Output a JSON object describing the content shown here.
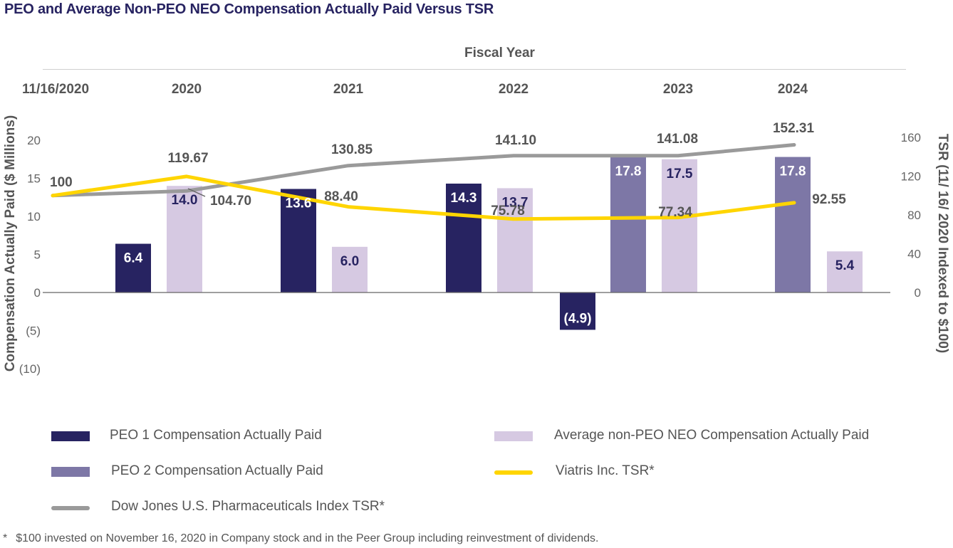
{
  "title": "PEO and Average Non-PEO NEO Compensation Actually Paid Versus TSR",
  "colors": {
    "peo1": "#272361",
    "peo2": "#7d77a6",
    "non_peo": "#d6c9e2",
    "viatris_tsr": "#ffd500",
    "dow_jones_tsr": "#9a9a9a",
    "text": "#555555",
    "title": "#272361"
  },
  "legend": {
    "peo1": "PEO 1 Compensation Actually Paid",
    "peo2": "PEO 2 Compensation Actually Paid",
    "dow_jones": "Dow Jones U.S. Pharmaceuticals Index TSR*",
    "non_peo": "Average non-PEO NEO Compensation Actually Paid",
    "viatris": "Viatris Inc. TSR*"
  },
  "footnote": {
    "star": "*",
    "text": "$100 invested on November 16, 2020 in Company stock and in the Peer Group including reinvestment of dividends."
  },
  "chart_data": {
    "type": "bar",
    "title": "PEO and Average Non-PEO NEO Compensation Actually Paid Versus TSR",
    "top_axis_title": "Fiscal Year",
    "xlabel": "Fiscal Year",
    "ylabel": "Compensation Actually Paid ($ Millions)",
    "y2label": "TSR (11/ 16/ 2020 Indexed to $100)",
    "categories": [
      "11/16/2020",
      "2020",
      "2021",
      "2022",
      "2023",
      "2024"
    ],
    "ylim": [
      -10,
      20
    ],
    "yticks": [
      20,
      15,
      10,
      5,
      0,
      -5,
      -10
    ],
    "ytick_labels": [
      "20",
      "15",
      "10",
      "5",
      "0",
      "(5)",
      "(10)"
    ],
    "y2lim": [
      0,
      160
    ],
    "y2ticks": [
      160,
      120,
      80,
      40,
      0
    ],
    "y2tick_labels": [
      "160",
      "120",
      "80",
      "40",
      "0"
    ],
    "grid": false,
    "legend_position": "bottom",
    "bar_series": [
      {
        "name": "PEO 1 Compensation Actually Paid",
        "key": "peo1",
        "bars": [
          {
            "year": "2020",
            "value": 6.4,
            "label": "6.4"
          },
          {
            "year": "2021",
            "value": 13.6,
            "label": "13.6"
          },
          {
            "year": "2022",
            "value": 14.3,
            "label": "14.3"
          },
          {
            "year": "2023",
            "value": -4.9,
            "label": "(4.9)"
          }
        ]
      },
      {
        "name": "PEO 2 Compensation Actually Paid",
        "key": "peo2",
        "bars": [
          {
            "year": "2023",
            "value": 17.8,
            "label": "17.8"
          },
          {
            "year": "2024",
            "value": 17.8,
            "label": "17.8"
          }
        ]
      },
      {
        "name": "Average non-PEO NEO Compensation Actually Paid",
        "key": "non_peo",
        "bars": [
          {
            "year": "2020",
            "value": 14.0,
            "label": "14.0"
          },
          {
            "year": "2021",
            "value": 6.0,
            "label": "6.0"
          },
          {
            "year": "2022",
            "value": 13.7,
            "label": "13.7"
          },
          {
            "year": "2023",
            "value": 17.5,
            "label": "17.5"
          },
          {
            "year": "2024",
            "value": 5.4,
            "label": "5.4"
          }
        ]
      }
    ],
    "line_series": [
      {
        "name": "Viatris Inc. TSR*",
        "key": "viatris",
        "axis": "right",
        "points": [
          {
            "x": "11/16/2020",
            "value": 100,
            "label": "100"
          },
          {
            "x": "2020",
            "value": 119.67,
            "label": "119.67"
          },
          {
            "x": "2021",
            "value": 88.4,
            "label": "88.40"
          },
          {
            "x": "2022",
            "value": 75.78,
            "label": "75.78"
          },
          {
            "x": "2023",
            "value": 77.34,
            "label": "77.34"
          },
          {
            "x": "2024",
            "value": 92.55,
            "label": "92.55"
          }
        ]
      },
      {
        "name": "Dow Jones U.S. Pharmaceuticals Index TSR*",
        "key": "dow_jones",
        "axis": "right",
        "points": [
          {
            "x": "11/16/2020",
            "value": 100,
            "label": ""
          },
          {
            "x": "2020",
            "value": 104.7,
            "label": "104.70"
          },
          {
            "x": "2021",
            "value": 130.85,
            "label": "130.85"
          },
          {
            "x": "2022",
            "value": 141.1,
            "label": "141.10"
          },
          {
            "x": "2023",
            "value": 141.08,
            "label": "141.08"
          },
          {
            "x": "2024",
            "value": 152.31,
            "label": "152.31"
          }
        ]
      }
    ]
  }
}
